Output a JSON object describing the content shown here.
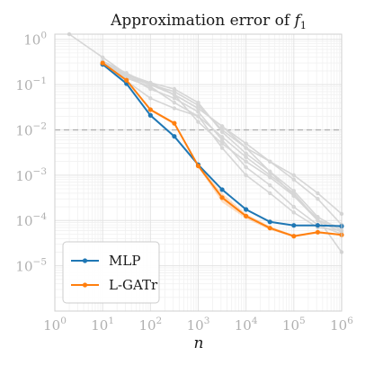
{
  "chart_data": {
    "type": "line",
    "title_prefix": "Approximation error of ",
    "title_var": "f",
    "title_sub": "1",
    "xlabel": "n",
    "ylabel": "",
    "xscale": "log",
    "yscale": "log",
    "xlim": [
      1,
      1000000
    ],
    "ylim": [
      1e-06,
      1.3
    ],
    "x_ticks": [
      {
        "base": "10",
        "exp": "0",
        "value": 1
      },
      {
        "base": "10",
        "exp": "1",
        "value": 10
      },
      {
        "base": "10",
        "exp": "2",
        "value": 100
      },
      {
        "base": "10",
        "exp": "3",
        "value": 1000
      },
      {
        "base": "10",
        "exp": "4",
        "value": 10000
      },
      {
        "base": "10",
        "exp": "5",
        "value": 100000
      },
      {
        "base": "10",
        "exp": "6",
        "value": 1000000
      }
    ],
    "y_ticks": [
      {
        "base": "10",
        "exp": "0",
        "value": 1
      },
      {
        "base": "10",
        "exp": "−1",
        "value": 0.1
      },
      {
        "base": "10",
        "exp": "−2",
        "value": 0.01
      },
      {
        "base": "10",
        "exp": "−3",
        "value": 0.001
      },
      {
        "base": "10",
        "exp": "−4",
        "value": 0.0001
      },
      {
        "base": "10",
        "exp": "−5",
        "value": 1e-05
      }
    ],
    "grid": true,
    "reference_line": {
      "y": 0.01,
      "style": "dashed",
      "color": "#aaaaaa"
    },
    "legend_position": "bottom-left",
    "series": [
      {
        "name": "MLP",
        "color": "#1f77b4",
        "x": [
          10,
          31.6,
          100,
          316,
          1000,
          3162,
          10000,
          31623,
          100000,
          316228,
          1000000
        ],
        "y": [
          0.28,
          0.105,
          0.021,
          0.0072,
          0.0017,
          0.00048,
          0.000175,
          9.3e-05,
          7.8e-05,
          7.8e-05,
          7.5e-05
        ]
      },
      {
        "name": "L-GATr",
        "color": "#ff7f0e",
        "x": [
          10,
          31.6,
          100,
          316,
          1000,
          3162,
          10000,
          31623,
          100000,
          316228,
          1000000
        ],
        "y": [
          0.3,
          0.125,
          0.028,
          0.014,
          0.0016,
          0.00032,
          0.000125,
          6.8e-05,
          4.5e-05,
          5.5e-05,
          4.8e-05
        ],
        "band_low": [
          0.29,
          0.12,
          0.026,
          0.013,
          0.0015,
          0.00025,
          0.00011,
          6.2e-05,
          4.3e-05,
          5.2e-05,
          4.6e-05
        ],
        "band_high": [
          0.31,
          0.13,
          0.03,
          0.015,
          0.0017,
          0.0004,
          0.00014,
          7.4e-05,
          4.8e-05,
          5.8e-05,
          5.1e-05
        ]
      }
    ],
    "background_series": [
      {
        "color": "#d6d6d6",
        "x": [
          2,
          10,
          31.6,
          100,
          316,
          1000,
          3162,
          10000,
          31623,
          100000,
          316228,
          1000000
        ],
        "y": [
          1.3,
          0.4,
          0.17,
          0.1,
          0.06,
          0.03,
          0.012,
          0.004,
          0.0012,
          0.00035,
          0.00011,
          2e-05
        ]
      },
      {
        "color": "#d6d6d6",
        "x": [
          10,
          31.6,
          100,
          316,
          1000,
          3162,
          10000,
          31623,
          100000,
          316228,
          1000000
        ],
        "y": [
          0.3,
          0.16,
          0.08,
          0.05,
          0.025,
          0.006,
          0.0015,
          0.0006,
          0.0002,
          8e-05,
          5e-05
        ]
      },
      {
        "color": "#d6d6d6",
        "x": [
          10,
          31.6,
          100,
          316,
          1000,
          3162,
          10000,
          31623,
          100000,
          316228,
          1000000
        ],
        "y": [
          0.33,
          0.15,
          0.1,
          0.07,
          0.035,
          0.01,
          0.004,
          0.002,
          0.001,
          0.0004,
          0.00014
        ]
      },
      {
        "color": "#d6d6d6",
        "x": [
          10,
          31.6,
          100,
          316,
          1000,
          3162,
          10000,
          31623,
          100000,
          316228,
          1000000
        ],
        "y": [
          0.32,
          0.17,
          0.11,
          0.08,
          0.04,
          0.009,
          0.003,
          0.0012,
          0.00045,
          0.00012,
          6e-05
        ]
      },
      {
        "color": "#d6d6d6",
        "x": [
          10,
          31.6,
          100,
          316,
          1000,
          3162,
          10000,
          31623,
          100000,
          316228,
          1000000
        ],
        "y": [
          0.3,
          0.14,
          0.09,
          0.04,
          0.02,
          0.007,
          0.0025,
          0.001,
          0.0004,
          0.0001,
          5.5e-05
        ]
      },
      {
        "color": "#d6d6d6",
        "x": [
          10,
          31.6,
          100,
          316,
          1000,
          3162,
          10000,
          31623,
          100000,
          316228,
          1000000
        ],
        "y": [
          0.31,
          0.16,
          0.11,
          0.06,
          0.03,
          0.012,
          0.005,
          0.002,
          0.0008,
          0.0003,
          8e-05
        ]
      },
      {
        "color": "#d6d6d6",
        "x": [
          10,
          31.6,
          100,
          316,
          1000,
          3162,
          10000,
          31623,
          100000,
          316228,
          1000000
        ],
        "y": [
          0.3,
          0.12,
          0.05,
          0.03,
          0.02,
          0.004,
          0.001,
          0.0004,
          0.00015,
          7e-05,
          6e-05
        ]
      },
      {
        "color": "#d6d6d6",
        "x": [
          10,
          31.6,
          100,
          316,
          1000,
          3162,
          10000,
          31623,
          100000,
          316228,
          1000000
        ],
        "y": [
          0.33,
          0.18,
          0.1,
          0.06,
          0.015,
          0.005,
          0.002,
          0.0009,
          0.00035,
          0.0001,
          7e-05
        ]
      }
    ]
  }
}
